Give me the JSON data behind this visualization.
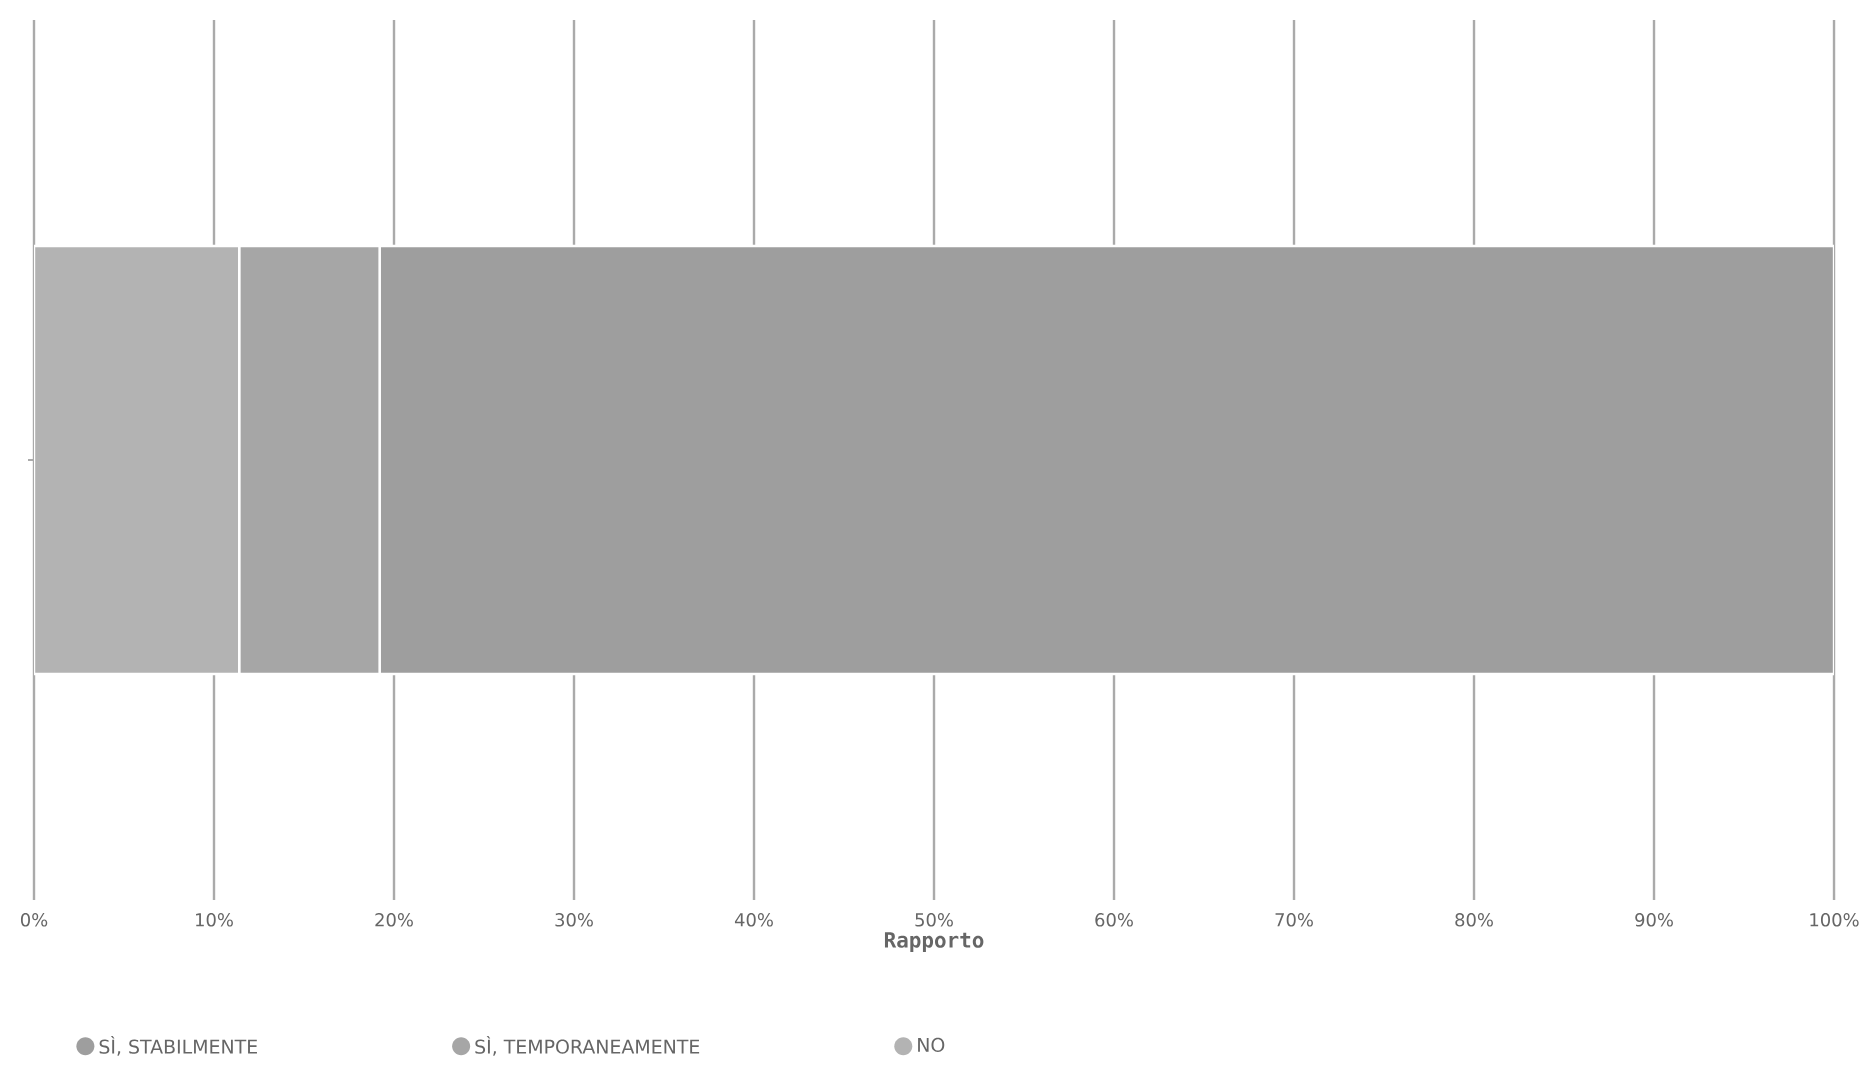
{
  "chart_data": {
    "type": "bar",
    "orientation": "horizontal",
    "stacked": true,
    "categories": [
      null
    ],
    "series": [
      {
        "name": "NO",
        "color": "#b3b3b3",
        "values": [
          11.4
        ]
      },
      {
        "name": "SÌ, TEMPORANEAMENTE",
        "color": "#a6a6a6",
        "values": [
          7.8
        ]
      },
      {
        "name": "SÌ, STABILMENTE",
        "color": "#9e9e9e",
        "values": [
          80.8
        ]
      }
    ],
    "xlabel": "Rapporto",
    "xlim": [
      0,
      100
    ],
    "xticks": [
      {
        "value": 0,
        "label": "0%"
      },
      {
        "value": 10,
        "label": "10%"
      },
      {
        "value": 20,
        "label": "20%"
      },
      {
        "value": 30,
        "label": "30%"
      },
      {
        "value": 40,
        "label": "40%"
      },
      {
        "value": 50,
        "label": "50%"
      },
      {
        "value": 60,
        "label": "60%"
      },
      {
        "value": 70,
        "label": "70%"
      },
      {
        "value": 80,
        "label": "80%"
      },
      {
        "value": 90,
        "label": "90%"
      },
      {
        "value": 100,
        "label": "100%"
      }
    ],
    "grid": "x",
    "legend": "bottom left"
  }
}
